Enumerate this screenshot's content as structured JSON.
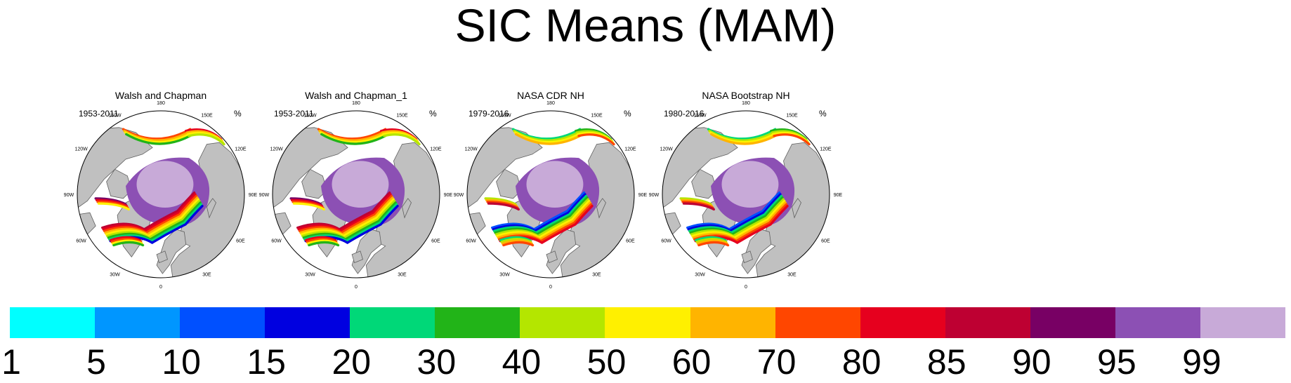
{
  "title": "SIC Means (MAM)",
  "panels": [
    {
      "title": "Walsh and Chapman",
      "period": "1953-2011",
      "units": "%"
    },
    {
      "title": "Walsh and Chapman_1",
      "period": "1953-2011",
      "units": "%"
    },
    {
      "title": "NASA CDR NH",
      "period": "1979-2016",
      "units": "%"
    },
    {
      "title": "NASA Bootstrap NH",
      "period": "1980-2016",
      "units": "%"
    }
  ],
  "longitude_labels": [
    "180",
    "150E",
    "120E",
    "90E",
    "60E",
    "30E",
    "0",
    "30W",
    "60W",
    "90W",
    "120W",
    "150W"
  ],
  "colorbar": {
    "colors": [
      "#00ffff",
      "#0096ff",
      "#0050ff",
      "#0000e0",
      "#00d878",
      "#22b418",
      "#b4e600",
      "#fff000",
      "#ffb400",
      "#ff4600",
      "#e6001e",
      "#be0032",
      "#780064",
      "#8c50b4",
      "#c8aad8"
    ],
    "labels": [
      "1",
      "5",
      "10",
      "15",
      "20",
      "30",
      "40",
      "50",
      "60",
      "70",
      "80",
      "85",
      "90",
      "95",
      "99"
    ]
  },
  "map_colors": {
    "land": "#c0c0c0",
    "ocean": "#ffffff",
    "coast": "#606060"
  }
}
